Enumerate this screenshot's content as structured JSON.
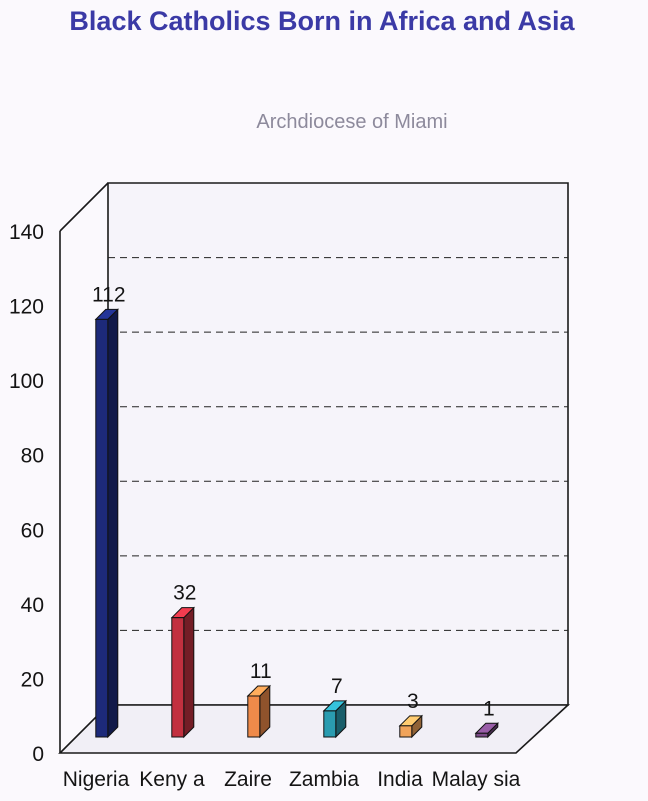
{
  "chart_data": {
    "type": "bar",
    "title": "Black Catholics Born in Africa and Asia",
    "subtitle": "Archdiocese of Miami",
    "categories": [
      "Nigeria",
      "Keny a",
      "Zaire",
      "Zambia",
      "India",
      "Malay sia"
    ],
    "values": [
      112,
      32,
      11,
      7,
      3,
      1
    ],
    "data_labels": [
      "112",
      "32",
      "11",
      "7",
      "3",
      "1"
    ],
    "yticks": [
      "0",
      "20",
      "40",
      "60",
      "80",
      "100",
      "120",
      "140"
    ],
    "ylim": [
      0,
      140
    ],
    "grid": "dashed horizontal",
    "three_d": true,
    "colors": {
      "title": "#3b3aa6",
      "subtitle": "#8d8a9c",
      "bars": [
        "#1d2a7a",
        "#c2303f",
        "#ef8a4a",
        "#2a9cb0",
        "#f0a35a",
        "#7a4a86"
      ]
    }
  }
}
